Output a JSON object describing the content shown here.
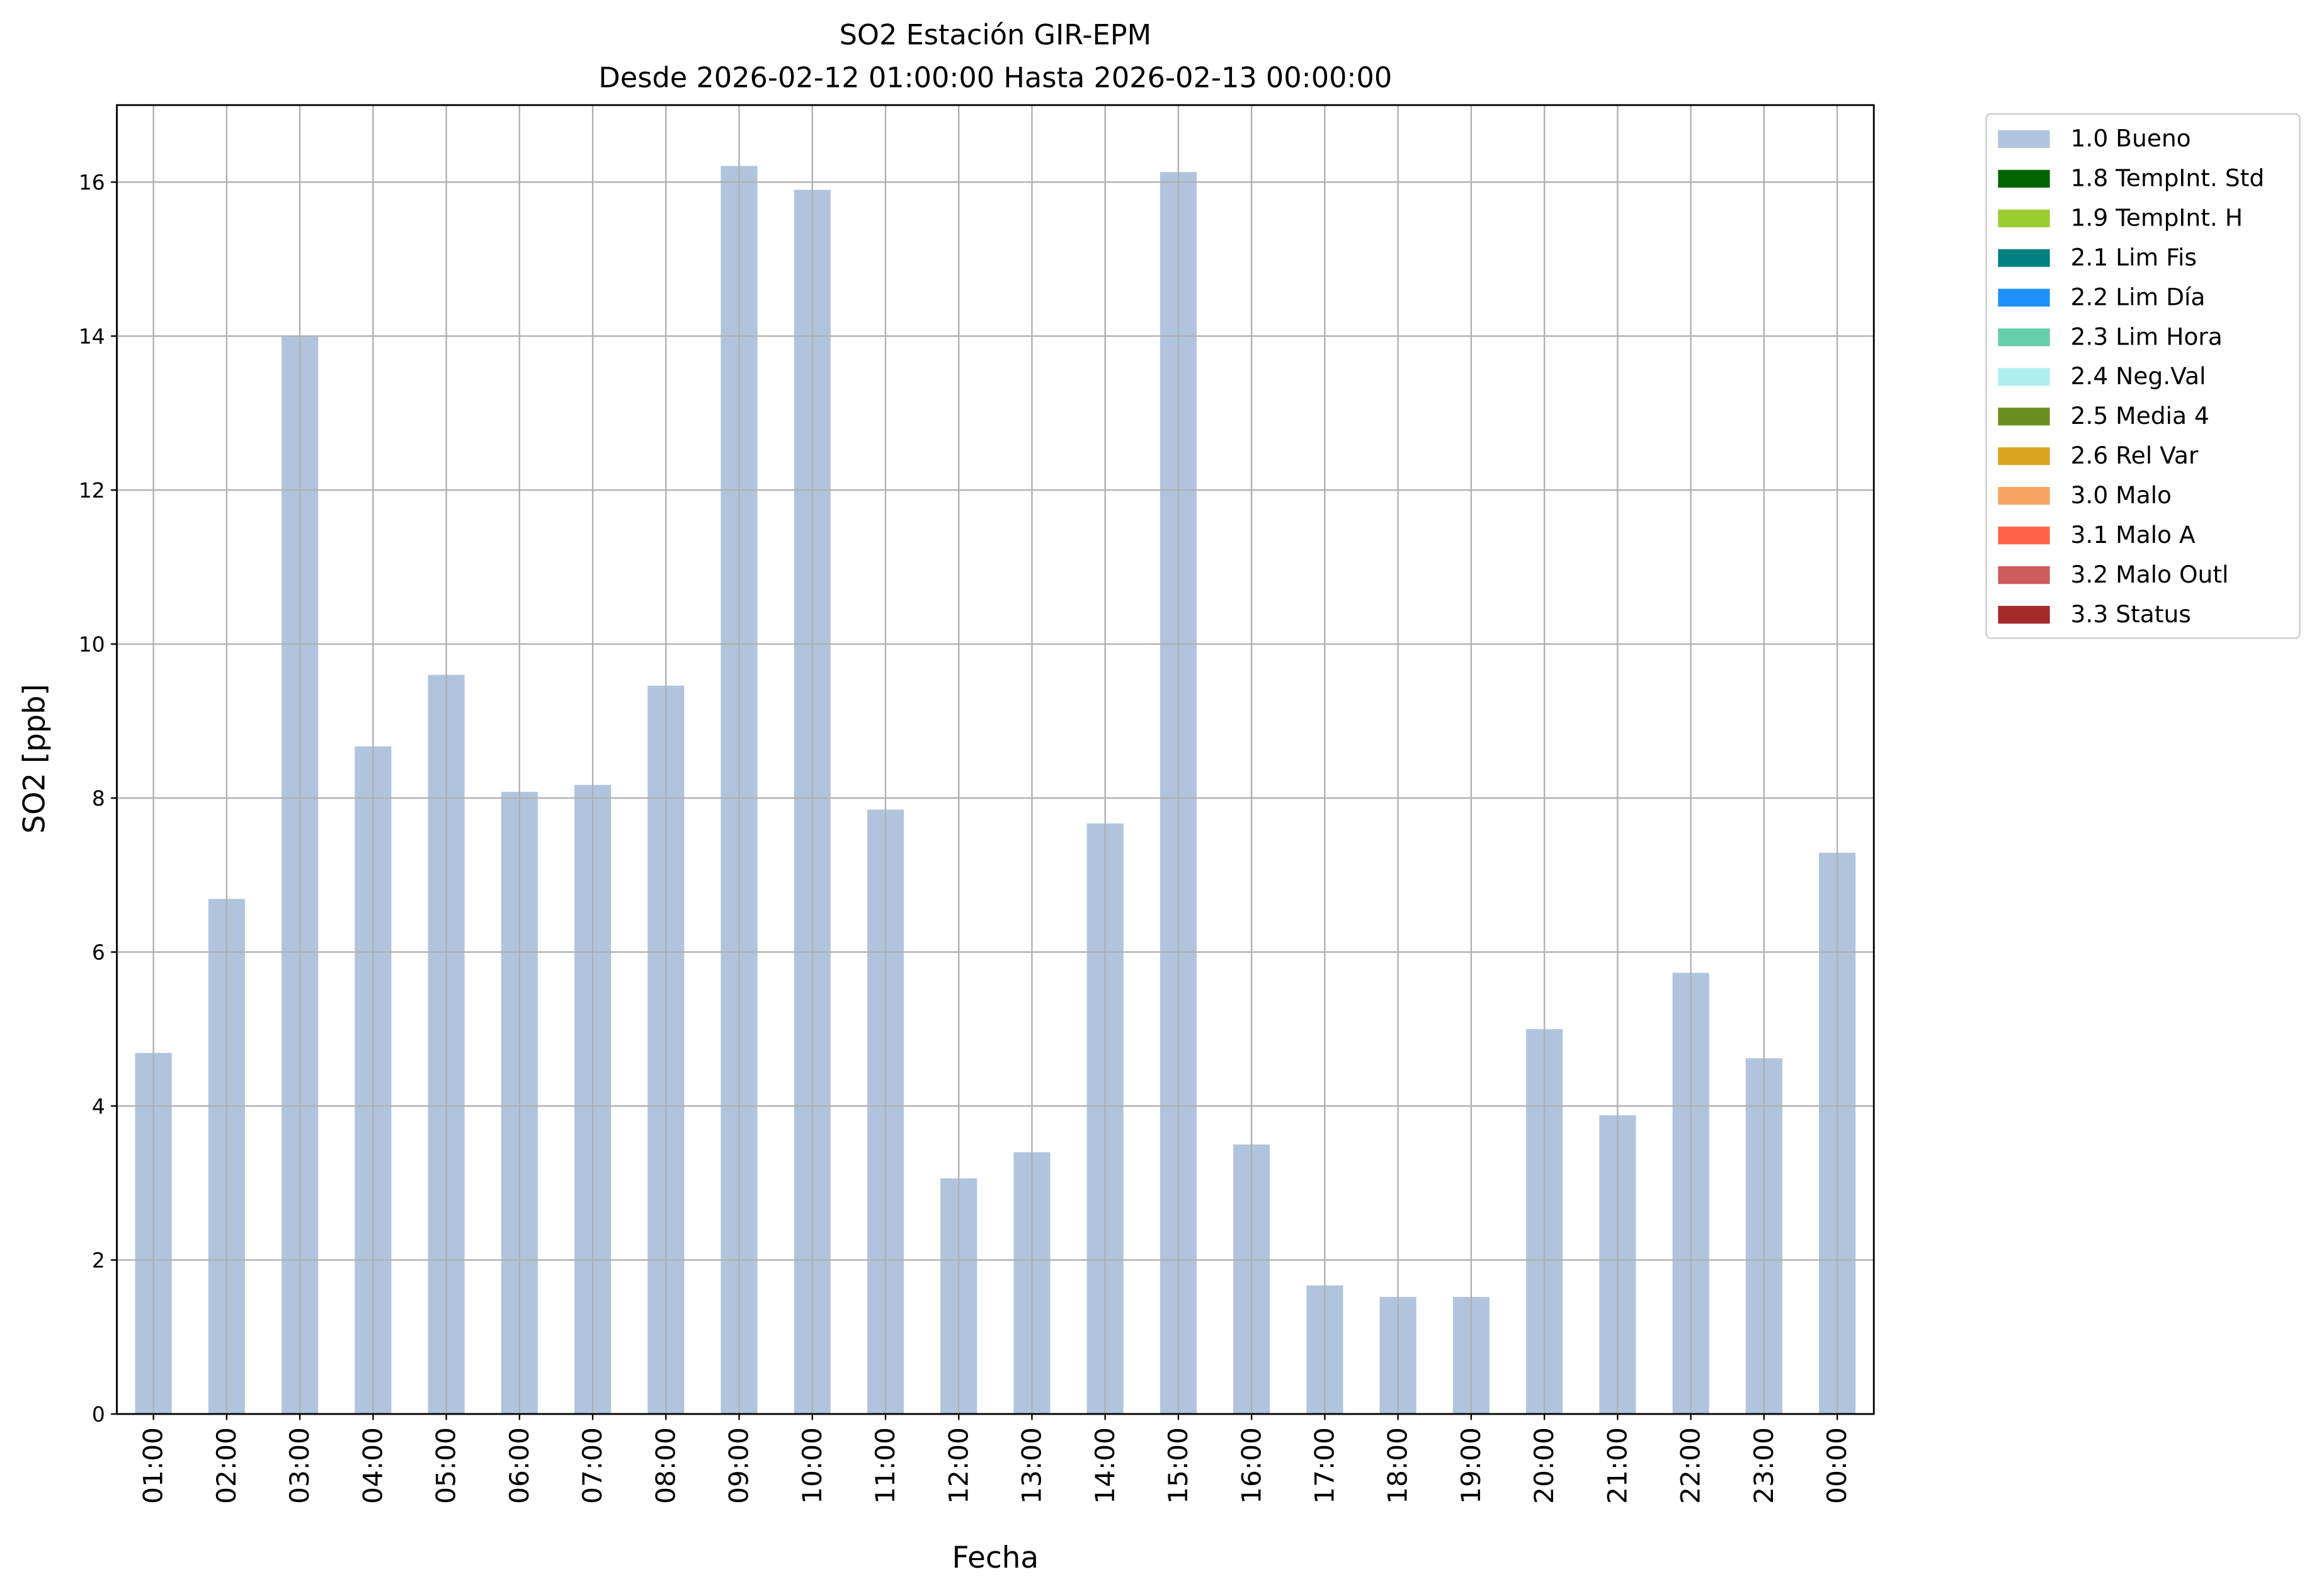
{
  "chart_data": {
    "type": "stacked-bar",
    "title": "SO2 Estación GIR-EPM",
    "subtitle": "Desde 2026-02-12 01:00:00 Hasta 2026-02-13 00:00:00",
    "xlabel": "Fecha",
    "ylabel": "SO2 [ppb]",
    "categories": [
      "01:00",
      "02:00",
      "03:00",
      "04:00",
      "05:00",
      "06:00",
      "07:00",
      "08:00",
      "09:00",
      "10:00",
      "11:00",
      "12:00",
      "13:00",
      "14:00",
      "15:00",
      "16:00",
      "17:00",
      "18:00",
      "19:00",
      "20:00",
      "21:00",
      "22:00",
      "23:00",
      "00:00"
    ],
    "series": [
      {
        "name": "1.0 Bueno",
        "color": "#b0c4de",
        "values": [
          4.69,
          6.69,
          14.0,
          8.67,
          9.6,
          8.08,
          8.17,
          9.46,
          16.21,
          15.9,
          7.85,
          3.06,
          3.4,
          7.67,
          16.13,
          3.5,
          1.67,
          1.52,
          1.52,
          5.0,
          3.88,
          5.73,
          4.62,
          7.29
        ]
      },
      {
        "name": "1.8 TempInt. Std",
        "color": "#006400",
        "values": [
          0,
          0,
          0,
          0,
          0,
          0,
          0,
          0,
          0,
          0,
          0,
          0,
          0,
          0,
          0,
          0,
          0,
          0,
          0,
          0,
          0,
          0,
          0,
          0
        ]
      },
      {
        "name": "1.9 TempInt. H",
        "color": "#9acd32",
        "values": [
          0,
          0,
          0,
          0,
          0,
          0,
          0,
          0,
          0,
          0,
          0,
          0,
          0,
          0,
          0,
          0,
          0,
          0,
          0,
          0,
          0,
          0,
          0,
          0
        ]
      },
      {
        "name": "2.1 Lim Fis",
        "color": "#008080",
        "values": [
          0,
          0,
          0,
          0,
          0,
          0,
          0,
          0,
          0,
          0,
          0,
          0,
          0,
          0,
          0,
          0,
          0,
          0,
          0,
          0,
          0,
          0,
          0,
          0
        ]
      },
      {
        "name": "2.2 Lim Día",
        "color": "#1e90ff",
        "values": [
          0,
          0,
          0,
          0,
          0,
          0,
          0,
          0,
          0,
          0,
          0,
          0,
          0,
          0,
          0,
          0,
          0,
          0,
          0,
          0,
          0,
          0,
          0,
          0
        ]
      },
      {
        "name": "2.3 Lim Hora",
        "color": "#66cdaa",
        "values": [
          0,
          0,
          0,
          0,
          0,
          0,
          0,
          0,
          0,
          0,
          0,
          0,
          0,
          0,
          0,
          0,
          0,
          0,
          0,
          0,
          0,
          0,
          0,
          0
        ]
      },
      {
        "name": "2.4 Neg.Val",
        "color": "#afeeee",
        "values": [
          0,
          0,
          0,
          0,
          0,
          0,
          0,
          0,
          0,
          0,
          0,
          0,
          0,
          0,
          0,
          0,
          0,
          0,
          0,
          0,
          0,
          0,
          0,
          0
        ]
      },
      {
        "name": "2.5 Media 4",
        "color": "#6b8e23",
        "values": [
          0,
          0,
          0,
          0,
          0,
          0,
          0,
          0,
          0,
          0,
          0,
          0,
          0,
          0,
          0,
          0,
          0,
          0,
          0,
          0,
          0,
          0,
          0,
          0
        ]
      },
      {
        "name": "2.6 Rel Var",
        "color": "#daa520",
        "values": [
          0,
          0,
          0,
          0,
          0,
          0,
          0,
          0,
          0,
          0,
          0,
          0,
          0,
          0,
          0,
          0,
          0,
          0,
          0,
          0,
          0,
          0,
          0,
          0
        ]
      },
      {
        "name": "3.0 Malo",
        "color": "#f4a460",
        "values": [
          0,
          0,
          0,
          0,
          0,
          0,
          0,
          0,
          0,
          0,
          0,
          0,
          0,
          0,
          0,
          0,
          0,
          0,
          0,
          0,
          0,
          0,
          0,
          0
        ]
      },
      {
        "name": "3.1 Malo A",
        "color": "#ff6347",
        "values": [
          0,
          0,
          0,
          0,
          0,
          0,
          0,
          0,
          0,
          0,
          0,
          0,
          0,
          0,
          0,
          0,
          0,
          0,
          0,
          0,
          0,
          0,
          0,
          0
        ]
      },
      {
        "name": "3.2 Malo Outl",
        "color": "#cd5c5c",
        "values": [
          0,
          0,
          0,
          0,
          0,
          0,
          0,
          0,
          0,
          0,
          0,
          0,
          0,
          0,
          0,
          0,
          0,
          0,
          0,
          0,
          0,
          0,
          0,
          0
        ]
      },
      {
        "name": "3.3 Status",
        "color": "#a52a2a",
        "values": [
          0,
          0,
          0,
          0,
          0,
          0,
          0,
          0,
          0,
          0,
          0,
          0,
          0,
          0,
          0,
          0,
          0,
          0,
          0,
          0,
          0,
          0,
          0,
          0
        ]
      }
    ],
    "ylim": [
      0,
      17
    ],
    "yticks": [
      0,
      2,
      4,
      6,
      8,
      10,
      12,
      14,
      16
    ],
    "grid": true,
    "legend": "outside-right"
  }
}
